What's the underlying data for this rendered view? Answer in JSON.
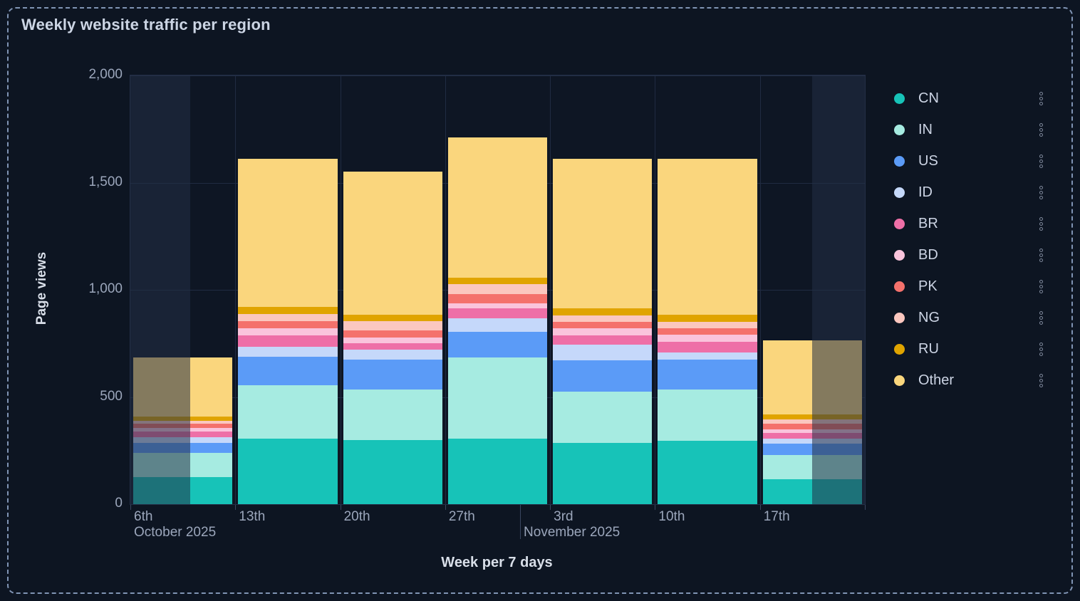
{
  "panel": {
    "title": "Weekly website traffic per region"
  },
  "axes": {
    "y_title": "Page views",
    "x_title": "Week per 7 days",
    "y_ticks": [
      "0",
      "500",
      "1,000",
      "1,500",
      "2,000"
    ],
    "month_labels": [
      {
        "text": "October 2025",
        "anchor_category_index": 0
      },
      {
        "text": "November 2025",
        "anchor_month_boundary": true
      }
    ]
  },
  "colors": {
    "panel_background": "#0d1522",
    "plot_background": "#0e1624",
    "gridline": "#202b42",
    "dashed_border": "#8094b4",
    "out_of_range_overlay": "rgba(35,47,70,0.55)",
    "tick": "#3a465f"
  },
  "chart_data": {
    "type": "bar",
    "stacked": true,
    "title": "Weekly website traffic per region",
    "xlabel": "Week per 7 days",
    "ylabel": "Page views",
    "ylim": [
      0,
      2000
    ],
    "grid": true,
    "legend_position": "right",
    "categories": [
      "6th",
      "13th",
      "20th",
      "27th",
      "3rd",
      "10th",
      "17th"
    ],
    "category_months": [
      "October 2025",
      "October 2025",
      "October 2025",
      "October 2025",
      "November 2025",
      "November 2025",
      "November 2025"
    ],
    "series": [
      {
        "name": "CN",
        "color": "#17c3b8",
        "values": [
          125,
          307,
          300,
          307,
          285,
          295,
          115
        ]
      },
      {
        "name": "IN",
        "color": "#a6ebe1",
        "values": [
          115,
          247,
          234,
          378,
          240,
          240,
          115
        ]
      },
      {
        "name": "US",
        "color": "#5b9bf7",
        "values": [
          45,
          133,
          142,
          119,
          145,
          138,
          52
        ]
      },
      {
        "name": "ID",
        "color": "#c5d8fa",
        "values": [
          28,
          47,
          44,
          64,
          75,
          35,
          24
        ]
      },
      {
        "name": "BR",
        "color": "#ee6fa7",
        "values": [
          27,
          53,
          30,
          46,
          42,
          48,
          27
        ]
      },
      {
        "name": "BD",
        "color": "#fac4dc",
        "values": [
          15,
          33,
          29,
          24,
          33,
          35,
          17
        ]
      },
      {
        "name": "PK",
        "color": "#f4716c",
        "values": [
          20,
          33,
          33,
          42,
          31,
          28,
          25
        ]
      },
      {
        "name": "NG",
        "color": "#fbc7bf",
        "values": [
          14,
          34,
          41,
          47,
          30,
          33,
          19
        ]
      },
      {
        "name": "RU",
        "color": "#e0a400",
        "values": [
          18,
          33,
          30,
          28,
          34,
          33,
          26
        ]
      },
      {
        "name": "Other",
        "color": "#fad67d",
        "values": [
          278,
          690,
          667,
          655,
          695,
          725,
          345
        ]
      }
    ],
    "bar_totals": [
      685,
      1610,
      1550,
      1710,
      1610,
      1610,
      765
    ],
    "out_of_range": {
      "left_partial_week_fraction": 0.57,
      "right_partial_week_fraction": 0.5,
      "note": "first and last partial weeks are dimmed"
    }
  },
  "legend": {
    "menu_icon": "kebab-menu-icon"
  }
}
